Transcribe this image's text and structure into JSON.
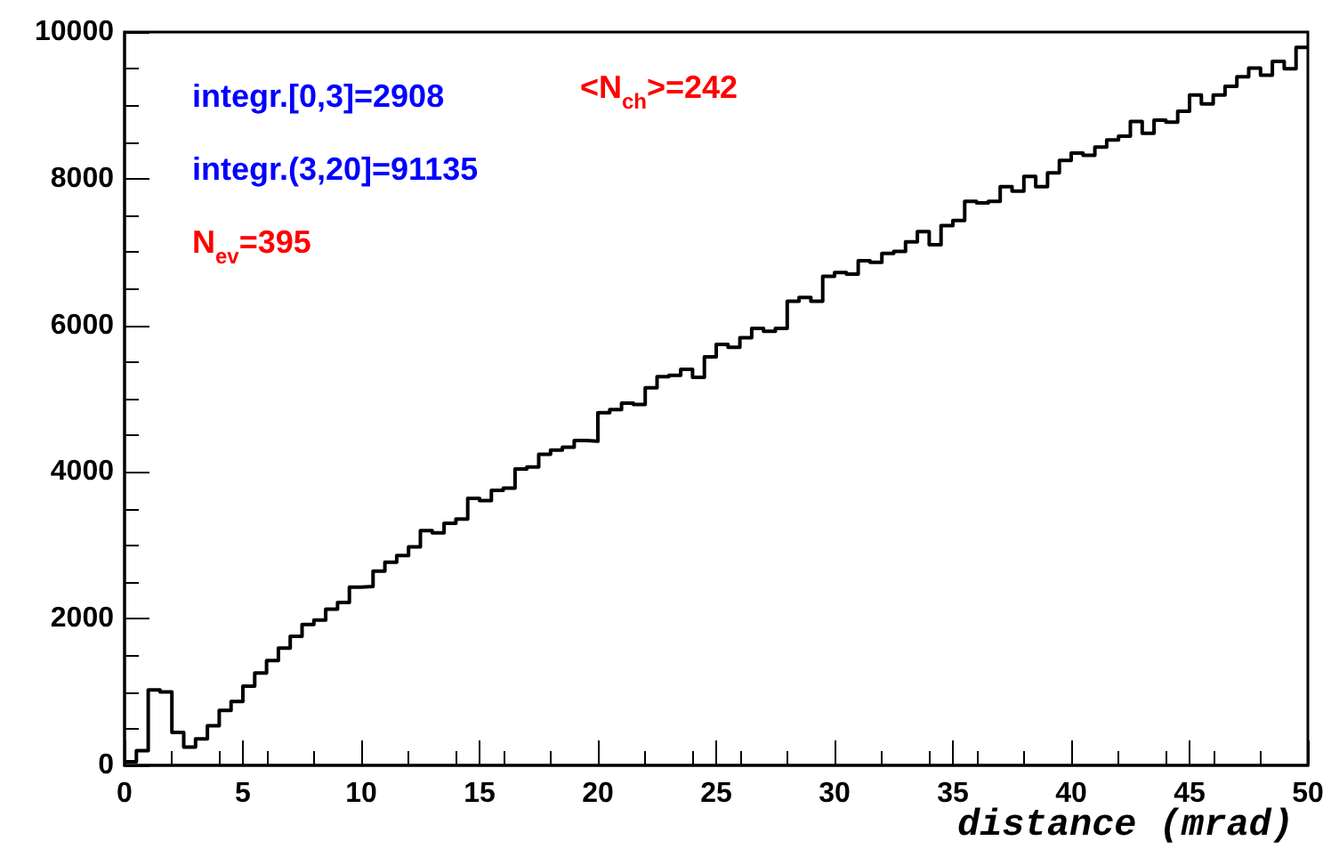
{
  "chart_data": {
    "type": "histogram",
    "xlabel": "distance (mrad)",
    "bins": [
      0,
      0.5,
      1,
      1.5,
      2,
      2.5,
      3,
      3.5,
      4,
      4.5,
      5,
      5.5,
      6,
      6.5,
      7,
      7.5,
      8,
      8.5,
      9,
      9.5,
      10,
      10.5,
      11,
      11.5,
      12,
      12.5,
      13,
      13.5,
      14,
      14.5,
      15,
      15.5,
      16,
      16.5,
      17,
      17.5,
      18,
      18.5,
      19,
      19.5,
      20,
      20.5,
      21,
      21.5,
      22,
      22.5,
      23,
      23.5,
      24,
      24.5,
      25,
      25.5,
      26,
      26.5,
      27,
      27.5,
      28,
      28.5,
      29,
      29.5,
      30,
      30.5,
      31,
      31.5,
      32,
      32.5,
      33,
      33.5,
      34,
      34.5,
      35,
      35.5,
      36,
      36.5,
      37,
      37.5,
      38,
      38.5,
      39,
      39.5,
      40,
      40.5,
      41,
      41.5,
      42,
      42.5,
      43,
      43.5,
      44,
      44.5,
      45,
      45.5,
      46,
      46.5,
      47,
      47.5,
      48,
      48.5,
      49,
      49.5,
      50
    ],
    "values": [
      50,
      200,
      1030,
      1000,
      450,
      250,
      360,
      540,
      750,
      870,
      1080,
      1260,
      1430,
      1600,
      1760,
      1920,
      1980,
      2130,
      2220,
      2430,
      2440,
      2650,
      2770,
      2860,
      2980,
      3200,
      3170,
      3300,
      3360,
      3640,
      3610,
      3750,
      3780,
      4040,
      4070,
      4240,
      4300,
      4340,
      4430,
      4420,
      4810,
      4850,
      4940,
      4920,
      5150,
      5300,
      5320,
      5400,
      5290,
      5570,
      5740,
      5700,
      5830,
      5960,
      5920,
      5960,
      6330,
      6380,
      6330,
      6670,
      6720,
      6700,
      6880,
      6860,
      6980,
      7010,
      7140,
      7280,
      7100,
      7360,
      7430,
      7690,
      7670,
      7690,
      7890,
      7830,
      8030,
      7890,
      8080,
      8250,
      8350,
      8320,
      8430,
      8530,
      8580,
      8780,
      8620,
      8800,
      8770,
      8920,
      9140,
      9020,
      9140,
      9260,
      9390,
      9510,
      9410,
      9600,
      9500,
      9790
    ],
    "color": "#000000",
    "xlim": [
      0,
      50
    ],
    "xticks": [
      0,
      5,
      10,
      15,
      20,
      25,
      30,
      35,
      40,
      45,
      50
    ],
    "ylim": [
      0,
      10000
    ],
    "yticks": [
      0,
      2000,
      4000,
      6000,
      8000,
      10000
    ],
    "grid": false,
    "annotations": [
      "integr.[0,3]=2908",
      "integr.(3,20]=91135",
      "N$_{ev}$=395",
      "<N$_{ch}$>=242"
    ]
  }
}
